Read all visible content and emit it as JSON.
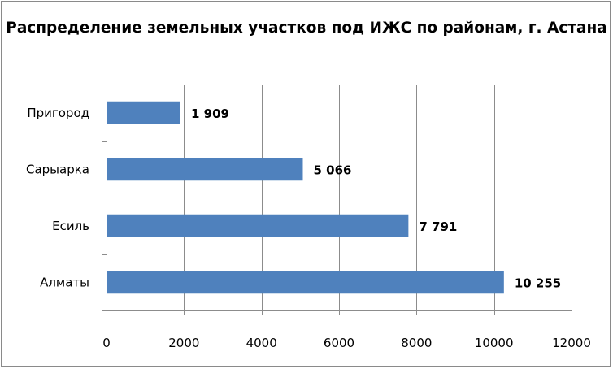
{
  "chart_data": {
    "type": "bar",
    "orientation": "horizontal",
    "title": "Распределение земельных участков под ИЖС по районам, г. Астана",
    "categories": [
      "Пригород",
      "Сарыарка",
      "Есиль",
      "Алматы"
    ],
    "values": [
      1909,
      5066,
      7791,
      10255
    ],
    "data_labels": [
      "1 909",
      "5 066",
      "7 791",
      "10 255"
    ],
    "xlim": [
      0,
      12000
    ],
    "x_ticks": [
      0,
      2000,
      4000,
      6000,
      8000,
      10000,
      12000
    ],
    "x_tick_labels": [
      "0",
      "2000",
      "4000",
      "6000",
      "8000",
      "10000",
      "12000"
    ],
    "grid": "vertical",
    "legend": "none",
    "bar_color": "#4f81bd",
    "xlabel": "",
    "ylabel": ""
  }
}
